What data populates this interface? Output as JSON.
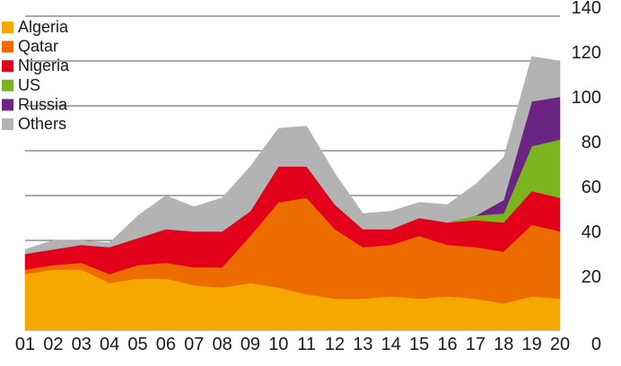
{
  "chart_data": {
    "type": "area",
    "stacked": true,
    "categories": [
      "01",
      "02",
      "03",
      "04",
      "05",
      "06",
      "07",
      "08",
      "09",
      "10",
      "11",
      "12",
      "13",
      "14",
      "15",
      "16",
      "17",
      "18",
      "19",
      "20"
    ],
    "series": [
      {
        "name": "Algeria",
        "color": "#f5a800",
        "values": [
          25,
          27,
          27,
          21,
          23,
          23,
          20,
          19,
          21,
          19,
          16,
          14,
          14,
          15,
          14,
          15,
          14,
          12,
          15,
          14
        ]
      },
      {
        "name": "Qatar",
        "color": "#ec6c00",
        "values": [
          2,
          2,
          3,
          4,
          6,
          7,
          8,
          9,
          21,
          38,
          43,
          31,
          23,
          23,
          28,
          23,
          23,
          23,
          32,
          30
        ]
      },
      {
        "name": "Nigeria",
        "color": "#e2001a",
        "values": [
          7,
          7,
          8,
          12,
          12,
          15,
          16,
          16,
          11,
          16,
          14,
          11,
          8,
          7,
          8,
          10,
          12,
          13,
          15,
          15
        ]
      },
      {
        "name": "US",
        "color": "#7ab51d",
        "values": [
          0,
          0,
          0,
          0,
          0,
          0,
          0,
          0,
          0,
          0,
          0,
          0,
          0,
          0,
          0,
          0,
          2,
          4,
          20,
          26
        ]
      },
      {
        "name": "Russia",
        "color": "#6b2482",
        "values": [
          0,
          0,
          0,
          0,
          0,
          0,
          0,
          0,
          0,
          0,
          0,
          0,
          0,
          0,
          0,
          0,
          0,
          6,
          20,
          19
        ]
      },
      {
        "name": "Others",
        "color": "#b3b3b3",
        "values": [
          2,
          4,
          2,
          2,
          10,
          15,
          11,
          15,
          20,
          17,
          18,
          14,
          7,
          8,
          7,
          8,
          14,
          19,
          20,
          16
        ]
      }
    ],
    "y_ticks": [
      "0",
      "20",
      "40",
      "60",
      "80",
      "100",
      "120",
      "140"
    ],
    "ylim": [
      0,
      140
    ],
    "grid": "horizontal",
    "y_axis_side": "right",
    "legend_position": "top-left",
    "title": "",
    "xlabel": "",
    "ylabel": ""
  }
}
